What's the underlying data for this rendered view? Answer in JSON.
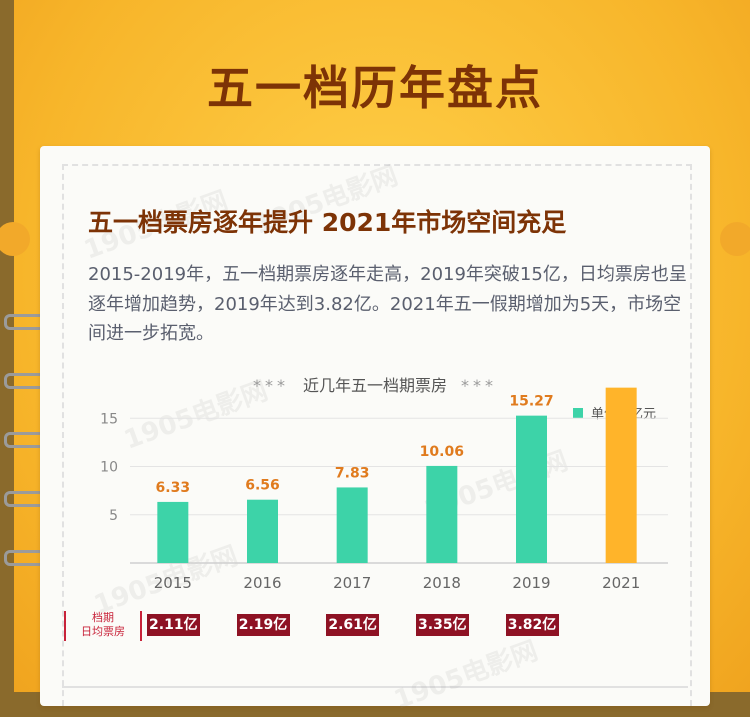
{
  "title": "五一档历年盘点",
  "subtitle": "五一档票房逐年提升  2021年市场空间充足",
  "paragraph": "2015-2019年，五一档期票房逐年走高，2019年突破15亿，日均票房也呈逐年增加趋势，2019年达到3.82亿。2021年五一假期增加为5天，市场空间进一步拓宽。",
  "chart_title": {
    "stars_left": "***",
    "text": "近几年五一档期票房",
    "stars_right": "***"
  },
  "legend_label": "单位：亿元",
  "row_label": {
    "line1": "档期",
    "line2": "日均票房"
  },
  "daily_badges": [
    "2.11亿",
    "2.19亿",
    "2.61亿",
    "3.35亿",
    "3.82亿"
  ],
  "watermark": "1905电影网",
  "chart_data": {
    "type": "bar",
    "title": "近几年五一档期票房",
    "ylabel": "单位：亿元",
    "categories": [
      "2015",
      "2016",
      "2017",
      "2018",
      "2019",
      "2021"
    ],
    "values": [
      6.33,
      6.56,
      7.83,
      10.06,
      15.27,
      null
    ],
    "value_labels": [
      "6.33",
      "6.56",
      "7.83",
      "10.06",
      "15.27",
      ""
    ],
    "y_ticks": [
      "0",
      "5",
      "10",
      "15"
    ],
    "ylim": [
      0,
      20
    ],
    "grid": true,
    "colors": {
      "series": "#3dd3a8",
      "highlight": "#ffb42a",
      "label": "#e07b1e"
    }
  }
}
